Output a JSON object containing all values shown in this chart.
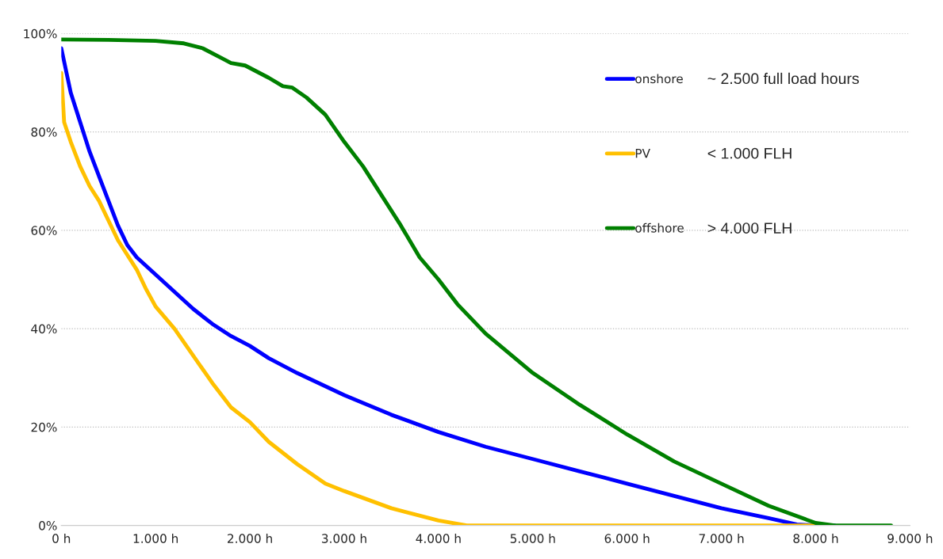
{
  "chart_data": {
    "type": "line",
    "series": [
      {
        "name": "onshore",
        "color": "#0000ff",
        "x": [
          0,
          100,
          200,
          300,
          400,
          500,
          600,
          700,
          800,
          1000,
          1200,
          1400,
          1600,
          1800,
          2000,
          2200,
          2500,
          3000,
          3500,
          4000,
          4500,
          5000,
          5500,
          6000,
          6500,
          7000,
          7500,
          7800,
          8000,
          8200
        ],
        "values": [
          97,
          88,
          82,
          76,
          71,
          66,
          61,
          57,
          54.5,
          51,
          47.5,
          44,
          41,
          38.5,
          36.5,
          34,
          31,
          26.5,
          22.5,
          19,
          16,
          13.5,
          11,
          8.5,
          6,
          3.5,
          1.5,
          0.2,
          0,
          0
        ]
      },
      {
        "name": "PV",
        "color": "#ffc000",
        "x": [
          0,
          30,
          100,
          200,
          300,
          400,
          500,
          600,
          700,
          800,
          900,
          1000,
          1200,
          1400,
          1600,
          1800,
          2000,
          2200,
          2500,
          2800,
          3000,
          3500,
          4000,
          4300,
          5000,
          8000
        ],
        "values": [
          92,
          82,
          78,
          73,
          69,
          66,
          62,
          58,
          55,
          52,
          48,
          44.5,
          40,
          34.5,
          29,
          24,
          21,
          17,
          12.5,
          8.5,
          7,
          3.5,
          1,
          0,
          0,
          0
        ]
      },
      {
        "name": "offshore",
        "color": "#008000",
        "x": [
          0,
          500,
          1000,
          1300,
          1500,
          1700,
          1800,
          1950,
          2200,
          2350,
          2450,
          2600,
          2800,
          3000,
          3200,
          3400,
          3600,
          3800,
          4000,
          4200,
          4500,
          5000,
          5500,
          6000,
          6500,
          7000,
          7500,
          8000,
          8200,
          8800
        ],
        "values": [
          98.8,
          98.7,
          98.5,
          98,
          97,
          95,
          94,
          93.5,
          91,
          89.3,
          89,
          87,
          83.5,
          78,
          73,
          67,
          61,
          54.5,
          50,
          45,
          39,
          31,
          24.5,
          18.5,
          13,
          8.5,
          4,
          0.5,
          0,
          0
        ]
      }
    ],
    "xlim": [
      0,
      9000
    ],
    "xticks": [
      {
        "value": 0,
        "label": "0 h"
      },
      {
        "value": 1000,
        "label": "1.000 h"
      },
      {
        "value": 2000,
        "label": "2.000 h"
      },
      {
        "value": 3000,
        "label": "3.000 h"
      },
      {
        "value": 4000,
        "label": "4.000 h"
      },
      {
        "value": 5000,
        "label": "5.000 h"
      },
      {
        "value": 6000,
        "label": "6.000 h"
      },
      {
        "value": 7000,
        "label": "7.000 h"
      },
      {
        "value": 8000,
        "label": "8.000 h"
      },
      {
        "value": 9000,
        "label": "9.000 h"
      }
    ],
    "ylim": [
      0,
      100
    ],
    "yticks": [
      {
        "value": 0,
        "label": "0%"
      },
      {
        "value": 20,
        "label": "20%"
      },
      {
        "value": 40,
        "label": "40%"
      },
      {
        "value": 60,
        "label": "60%"
      },
      {
        "value": 80,
        "label": "80%"
      },
      {
        "value": 100,
        "label": "100%"
      }
    ],
    "grid": "y",
    "legend": "top right",
    "line_style": "solid",
    "marker": "none",
    "annotations": [
      "~ 2.500 full load hours",
      "< 1.000 FLH",
      "> 4.000 FLH"
    ]
  }
}
